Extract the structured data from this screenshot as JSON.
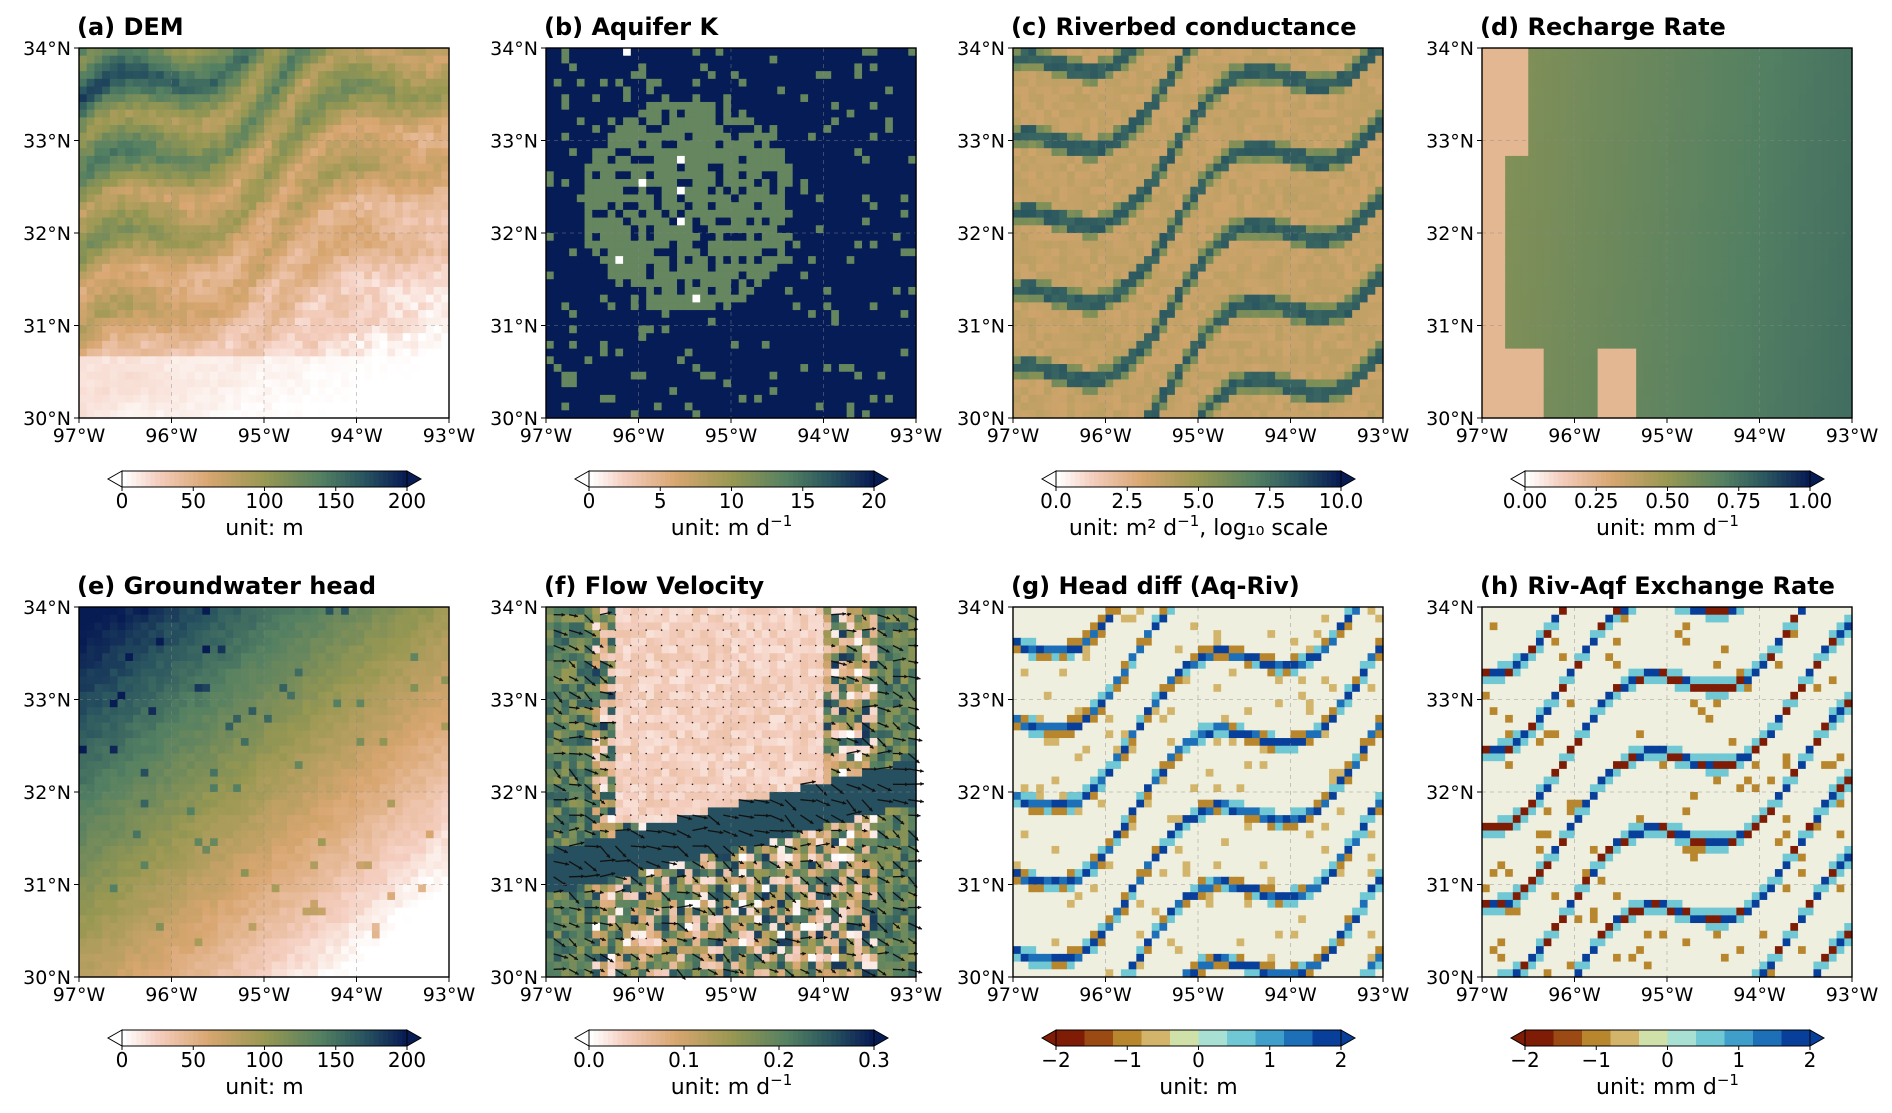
{
  "lon_labels": [
    "97°W",
    "96°W",
    "95°W",
    "94°W",
    "93°W"
  ],
  "lat_labels": [
    "30°N",
    "31°N",
    "32°N",
    "33°N",
    "34°N"
  ],
  "extent": {
    "lon_min": -97,
    "lon_max": -93,
    "lat_min": 30,
    "lat_max": 34
  },
  "colors": {
    "background": "#ffffff",
    "lake": "#9fc3e0",
    "land_neutral": "#eeefde"
  },
  "panels": [
    {
      "id": "a",
      "title": "(a) DEM",
      "field": "dem",
      "cmap": "gist_earth_r",
      "colorbar": {
        "ticks": [
          "0",
          "50",
          "100",
          "150",
          "200"
        ],
        "min": 0,
        "max": 200,
        "extend": "both",
        "unit": "unit: m",
        "unit_sup": "",
        "unit_tail": ""
      }
    },
    {
      "id": "b",
      "title": "(b) Aquifer K",
      "field": "aquifer_k",
      "cmap": "gist_earth_r",
      "colorbar": {
        "ticks": [
          "0",
          "5",
          "10",
          "15",
          "20"
        ],
        "min": 0,
        "max": 20,
        "extend": "both",
        "unit": "unit: m d",
        "unit_sup": "−1",
        "unit_tail": ""
      }
    },
    {
      "id": "c",
      "title": "(c) Riverbed conductance",
      "field": "riverbed_cond",
      "cmap": "gist_earth_r",
      "colorbar": {
        "ticks": [
          "0.0",
          "2.5",
          "5.0",
          "7.5",
          "10.0"
        ],
        "min": 0,
        "max": 10,
        "extend": "both",
        "unit": "unit: m² d",
        "unit_sup": "−1",
        "unit_tail": ", log₁₀ scale"
      }
    },
    {
      "id": "d",
      "title": "(d) Recharge Rate",
      "field": "recharge",
      "cmap": "gist_earth_r",
      "colorbar": {
        "ticks": [
          "0.00",
          "0.25",
          "0.50",
          "0.75",
          "1.00"
        ],
        "min": 0,
        "max": 1,
        "extend": "both",
        "unit": "unit: mm d",
        "unit_sup": "−1",
        "unit_tail": ""
      }
    },
    {
      "id": "e",
      "title": "(e) Groundwater head",
      "field": "gw_head",
      "cmap": "gist_earth_r",
      "colorbar": {
        "ticks": [
          "0",
          "50",
          "100",
          "150",
          "200"
        ],
        "min": 0,
        "max": 200,
        "extend": "both",
        "unit": "unit: m",
        "unit_sup": "",
        "unit_tail": ""
      }
    },
    {
      "id": "f",
      "title": "(f) Flow Velocity",
      "field": "velocity",
      "cmap": "gist_earth_r",
      "quiver": true,
      "colorbar": {
        "ticks": [
          "0.0",
          "0.1",
          "0.2",
          "0.3"
        ],
        "min": 0,
        "max": 0.3,
        "extend": "both",
        "unit": "unit: m d",
        "unit_sup": "−1",
        "unit_tail": ""
      }
    },
    {
      "id": "g",
      "title": "(g) Head diff (Aq-Riv)",
      "field": "head_diff",
      "cmap": "BrBG_discrete",
      "colorbar": {
        "ticks": [
          "−2",
          "−1",
          "0",
          "1",
          "2"
        ],
        "min": -2,
        "max": 2,
        "extend": "both",
        "discrete": 10,
        "unit": "unit: m",
        "unit_sup": "",
        "unit_tail": ""
      }
    },
    {
      "id": "h",
      "title": "(h) Riv-Aqf Exchange Rate",
      "field": "exchange",
      "cmap": "BrBG_discrete",
      "colorbar": {
        "ticks": [
          "−2",
          "−1",
          "0",
          "1",
          "2"
        ],
        "min": -2,
        "max": 2,
        "extend": "both",
        "discrete": 10,
        "unit": "unit: mm d",
        "unit_sup": "−1",
        "unit_tail": ""
      }
    }
  ]
}
